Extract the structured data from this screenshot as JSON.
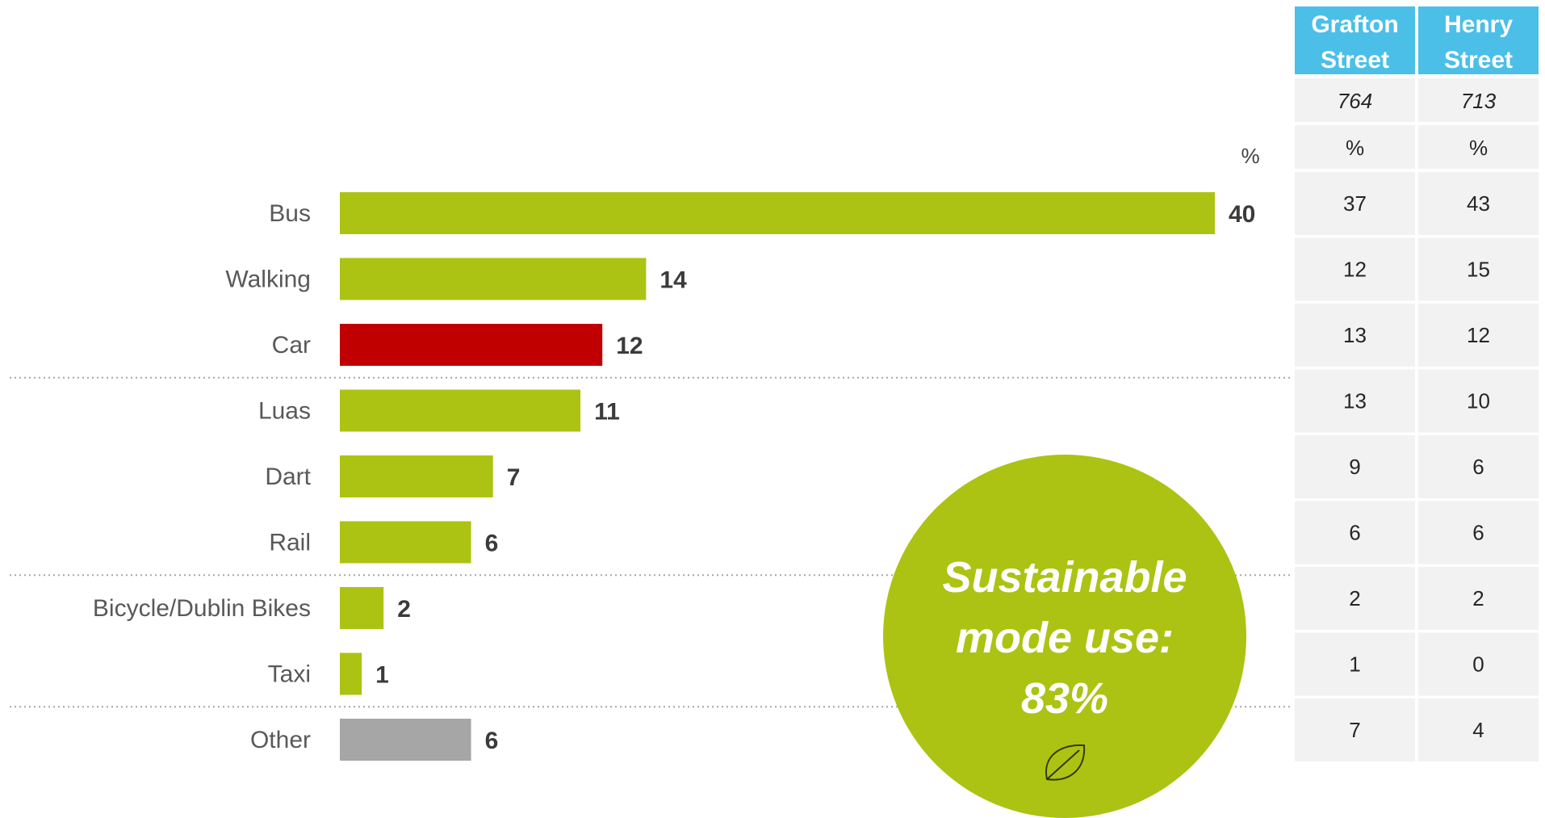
{
  "colors": {
    "sustainable": "#acc313",
    "car": "#c00000",
    "other": "#a6a6a6",
    "table_header": "#4bbfe8",
    "table_cell": "#f2f2f2",
    "badge": "#acc313"
  },
  "chart_data": {
    "type": "bar",
    "orientation": "horizontal",
    "unit": "%",
    "categories": [
      "Bus",
      "Walking",
      "Car",
      "Luas",
      "Dart",
      "Rail",
      "Bicycle/Dublin Bikes",
      "Taxi",
      "Other"
    ],
    "values": [
      40,
      14,
      12,
      11,
      7,
      6,
      2,
      1,
      6
    ],
    "bar_colors": [
      "sustainable",
      "sustainable",
      "car",
      "sustainable",
      "sustainable",
      "sustainable",
      "sustainable",
      "sustainable",
      "other"
    ],
    "xlim": [
      0,
      40
    ],
    "separators_after": [
      "Car",
      "Rail",
      "Taxi"
    ]
  },
  "table": {
    "columns": [
      {
        "name_line1": "Grafton",
        "name_line2": "Street",
        "base": "764",
        "unit": "%",
        "values": [
          "37",
          "12",
          "13",
          "13",
          "9",
          "6",
          "2",
          "1",
          "7"
        ]
      },
      {
        "name_line1": "Henry",
        "name_line2": "Street",
        "base": "713",
        "unit": "%",
        "values": [
          "43",
          "15",
          "12",
          "10",
          "6",
          "6",
          "2",
          "0",
          "4"
        ]
      }
    ]
  },
  "badge": {
    "line1": "Sustainable",
    "line2": "mode use:",
    "line3": "83%",
    "icon": "leaf-icon"
  }
}
